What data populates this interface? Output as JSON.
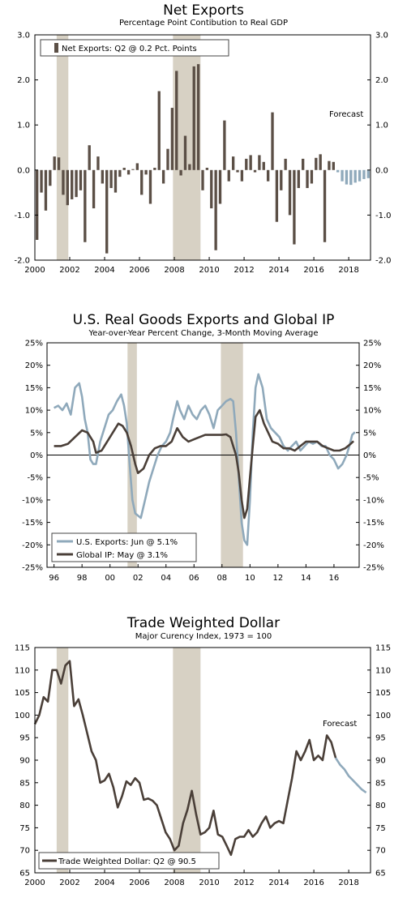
{
  "chart_data": [
    {
      "type": "bar",
      "title": "Net Exports",
      "subtitle": "Percentage Point Contibution to Real GDP",
      "annotation": "Forecast",
      "ylim": [
        -2,
        3
      ],
      "y_ticks": [
        "-2.0",
        "-1.0",
        "0.0",
        "1.0",
        "2.0",
        "3.0"
      ],
      "x_ticks": [
        "2000",
        "2002",
        "2004",
        "2006",
        "2008",
        "2010",
        "2012",
        "2014",
        "2016",
        "2018"
      ],
      "x_start": 2000,
      "recessions": [
        [
          2001.25,
          2001.92
        ],
        [
          2007.92,
          2009.5
        ]
      ],
      "legend": "Net Exports: Q2 @ 0.2 Pct. Points",
      "colors": {
        "actual": "#5b4f46",
        "forecast": "#8fa9bb",
        "recession": "#d7d1c4"
      },
      "series": [
        {
          "name": "Net Exports: Q2 @ 0.2 Pct. Points",
          "values": [
            -1.55,
            -0.5,
            -0.9,
            -0.35,
            0.3,
            0.28,
            -0.55,
            -0.78,
            -0.65,
            -0.6,
            -0.45,
            -1.6,
            0.55,
            -0.85,
            0.3,
            -0.3,
            -1.85,
            -0.4,
            -0.5,
            -0.15,
            0.05,
            -0.1,
            0.02,
            0.15,
            -0.55,
            -0.1,
            -0.75,
            0.05,
            1.75,
            -0.3,
            0.47,
            1.38,
            2.2,
            -0.12,
            0.76,
            0.13,
            2.3,
            2.35,
            -0.45,
            0.05,
            -0.85,
            -1.78,
            -0.75,
            1.1,
            -0.25,
            0.3,
            -0.05,
            -0.25,
            0.25,
            0.33,
            -0.05,
            0.33,
            0.18,
            -0.25,
            1.28,
            -1.15,
            -0.45,
            0.25,
            -1.0,
            -1.65,
            -0.4,
            0.25,
            -0.4,
            -0.3,
            0.27,
            0.35,
            -1.6,
            0.2,
            0.18,
            -0.05,
            -0.25,
            -0.32,
            -0.33,
            -0.28,
            -0.25,
            -0.2,
            -0.18
          ]
        }
      ],
      "forecast_start_index": 69
    },
    {
      "type": "line",
      "title": "U.S. Real Goods Exports and Global IP",
      "subtitle": "Year-over-Year Percent Change, 3-Month Moving Average",
      "ylim": [
        -25,
        25
      ],
      "y_ticks": [
        "-25%",
        "-20%",
        "-15%",
        "-10%",
        "-5%",
        "0%",
        "5%",
        "10%",
        "15%",
        "20%",
        "25%"
      ],
      "x_ticks": [
        "96",
        "98",
        "00",
        "02",
        "04",
        "06",
        "08",
        "10",
        "12",
        "14",
        "16"
      ],
      "recessions": [
        [
          2001.25,
          2001.92
        ],
        [
          2007.92,
          2009.5
        ]
      ],
      "series": [
        {
          "name": "U.S. Exports: Jun @ 5.1%",
          "color": "#8fa9bb",
          "x": [
            1996.0,
            1996.3,
            1996.6,
            1996.9,
            1997.2,
            1997.5,
            1997.8,
            1998.0,
            1998.2,
            1998.4,
            1998.6,
            1998.8,
            1999.0,
            1999.3,
            1999.6,
            1999.9,
            2000.2,
            2000.5,
            2000.8,
            2001.0,
            2001.2,
            2001.4,
            2001.6,
            2001.8,
            2002.0,
            2002.2,
            2002.5,
            2002.8,
            2003.1,
            2003.4,
            2003.7,
            2004.0,
            2004.3,
            2004.5,
            2004.8,
            2005.0,
            2005.3,
            2005.6,
            2005.9,
            2006.2,
            2006.5,
            2006.8,
            2007.1,
            2007.4,
            2007.7,
            2008.0,
            2008.3,
            2008.6,
            2008.8,
            2009.0,
            2009.2,
            2009.4,
            2009.6,
            2009.8,
            2010.0,
            2010.2,
            2010.4,
            2010.6,
            2010.9,
            2011.2,
            2011.5,
            2011.8,
            2012.1,
            2012.4,
            2012.7,
            2013.0,
            2013.3,
            2013.6,
            2013.9,
            2014.2,
            2014.5,
            2014.8,
            2015.1,
            2015.4,
            2015.7,
            2016.0,
            2016.3,
            2016.6,
            2016.9,
            2017.1,
            2017.3,
            2017.5
          ],
          "values": [
            10.5,
            11,
            10,
            11.5,
            9,
            15,
            16,
            13,
            8,
            5,
            -1,
            -2,
            -2,
            3,
            6,
            9,
            10,
            12,
            13.5,
            11,
            7,
            -2,
            -10,
            -13,
            -13.5,
            -14,
            -10,
            -6,
            -3,
            0,
            2,
            3,
            5,
            8,
            12,
            10,
            8,
            11,
            9,
            8,
            10,
            11,
            9,
            6,
            10,
            11,
            12,
            12.5,
            12,
            5,
            -5,
            -15,
            -19,
            -20,
            -10,
            5,
            15,
            18,
            15,
            8,
            6,
            5,
            4,
            2,
            1,
            2,
            3,
            1,
            2,
            3,
            2.5,
            3,
            2,
            2,
            0,
            -1,
            -3,
            -2,
            0,
            2,
            4.5,
            5.1
          ]
        },
        {
          "name": "Global IP: May @ 3.1%",
          "color": "#4a3f38",
          "x": [
            1996.0,
            1996.5,
            1997.0,
            1997.5,
            1998.0,
            1998.4,
            1998.8,
            1999.0,
            1999.4,
            1999.8,
            2000.2,
            2000.6,
            2000.9,
            2001.2,
            2001.5,
            2001.8,
            2002.0,
            2002.4,
            2002.8,
            2003.2,
            2003.6,
            2004.0,
            2004.4,
            2004.8,
            2005.2,
            2005.6,
            2006.0,
            2006.4,
            2006.8,
            2007.2,
            2007.6,
            2008.0,
            2008.3,
            2008.6,
            2008.8,
            2009.0,
            2009.2,
            2009.4,
            2009.6,
            2009.8,
            2010.0,
            2010.2,
            2010.4,
            2010.7,
            2011.0,
            2011.3,
            2011.6,
            2012.0,
            2012.4,
            2012.8,
            2013.2,
            2013.6,
            2014.0,
            2014.4,
            2014.8,
            2015.2,
            2015.6,
            2016.0,
            2016.4,
            2016.8,
            2017.2,
            2017.4
          ],
          "values": [
            2,
            2,
            2.5,
            4,
            5.5,
            5,
            3,
            0.5,
            1,
            3,
            5,
            7,
            6.5,
            5,
            2,
            -2,
            -4,
            -3,
            0,
            1.5,
            2,
            2,
            3,
            6,
            4,
            3,
            3.5,
            4,
            4.5,
            4.5,
            4.5,
            4.5,
            4.6,
            4,
            2,
            0,
            -4,
            -10,
            -14,
            -12,
            -5,
            2,
            8.5,
            10,
            7,
            5,
            3,
            2.5,
            1.5,
            1.5,
            1,
            2,
            3,
            3,
            3,
            2,
            1.5,
            1,
            1,
            1.5,
            2.5,
            3.1
          ]
        }
      ]
    },
    {
      "type": "line",
      "title": "Trade Weighted Dollar",
      "subtitle": "Major Curency Index, 1973 = 100",
      "annotation": "Forecast",
      "ylim": [
        65,
        115
      ],
      "y_ticks": [
        "65",
        "70",
        "75",
        "80",
        "85",
        "90",
        "95",
        "100",
        "105",
        "110",
        "115"
      ],
      "x_ticks": [
        "2000",
        "2002",
        "2004",
        "2006",
        "2008",
        "2010",
        "2012",
        "2014",
        "2016",
        "2018"
      ],
      "recessions": [
        [
          2001.25,
          2001.92
        ],
        [
          2007.92,
          2009.5
        ]
      ],
      "series": [
        {
          "name": "Trade Weighted Dollar: Q2 @ 90.5",
          "color": "#4a3f38",
          "x": [
            2000.0,
            2000.25,
            2000.5,
            2000.75,
            2001.0,
            2001.25,
            2001.5,
            2001.75,
            2002.0,
            2002.25,
            2002.5,
            2002.75,
            2003.0,
            2003.25,
            2003.5,
            2003.75,
            2004.0,
            2004.25,
            2004.5,
            2004.75,
            2005.0,
            2005.25,
            2005.5,
            2005.75,
            2006.0,
            2006.25,
            2006.5,
            2006.75,
            2007.0,
            2007.25,
            2007.5,
            2007.75,
            2008.0,
            2008.25,
            2008.5,
            2008.75,
            2009.0,
            2009.25,
            2009.5,
            2009.75,
            2010.0,
            2010.25,
            2010.5,
            2010.75,
            2011.0,
            2011.25,
            2011.5,
            2011.75,
            2012.0,
            2012.25,
            2012.5,
            2012.75,
            2013.0,
            2013.25,
            2013.5,
            2013.75,
            2014.0,
            2014.25,
            2014.5,
            2014.75,
            2015.0,
            2015.25,
            2015.5,
            2015.75,
            2016.0,
            2016.25,
            2016.5,
            2016.75,
            2017.0,
            2017.25
          ],
          "values": [
            98,
            100,
            104,
            103,
            110,
            110,
            107,
            111,
            112,
            102,
            103.5,
            100,
            96,
            92,
            90,
            85,
            85.5,
            87,
            84,
            79.5,
            82,
            85.3,
            84.5,
            86,
            85,
            81.2,
            81.5,
            81,
            80,
            77,
            74,
            72.5,
            70,
            71,
            76,
            79,
            83.2,
            78,
            73.5,
            74,
            75,
            78.8,
            73.5,
            73,
            71,
            69,
            72.5,
            73,
            73,
            74.5,
            73,
            74,
            76,
            77.5,
            75,
            76,
            76.5,
            76,
            81,
            86,
            92,
            90,
            92,
            94.5,
            90,
            91,
            90,
            95.5,
            94,
            90.5
          ]
        },
        {
          "name": "Forecast",
          "color": "#8fa9bb",
          "x": [
            2017.25,
            2017.5,
            2017.75,
            2018.0,
            2018.25,
            2018.5,
            2018.75,
            2019.0
          ],
          "values": [
            90.5,
            89,
            88,
            86.5,
            85.5,
            84.5,
            83.5,
            82.8
          ]
        }
      ],
      "legend": "Trade Weighted Dollar: Q2 @ 90.5"
    }
  ]
}
